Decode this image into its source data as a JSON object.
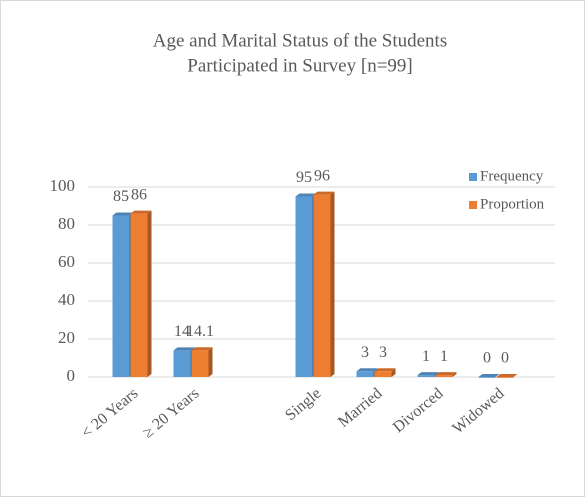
{
  "chart_data": {
    "type": "bar",
    "title": [
      "Age and Marital Status of the Students",
      "Participated in Survey [n=99]"
    ],
    "categories": [
      "< 20 Years",
      "≥ 20 Years",
      null,
      "Single",
      "Married",
      "Divorced",
      "Widowed"
    ],
    "series": [
      {
        "name": "Frequency",
        "color": "#5b9bd5",
        "values": [
          85,
          14,
          null,
          95,
          3,
          1,
          0
        ]
      },
      {
        "name": "Proportion",
        "color": "#ed7d31",
        "values": [
          86,
          14.1,
          null,
          96,
          3,
          1,
          0
        ]
      }
    ],
    "ylim": [
      0,
      100
    ],
    "yticks": [
      0,
      20,
      40,
      60,
      80,
      100
    ],
    "grid": true,
    "legend": "right"
  }
}
